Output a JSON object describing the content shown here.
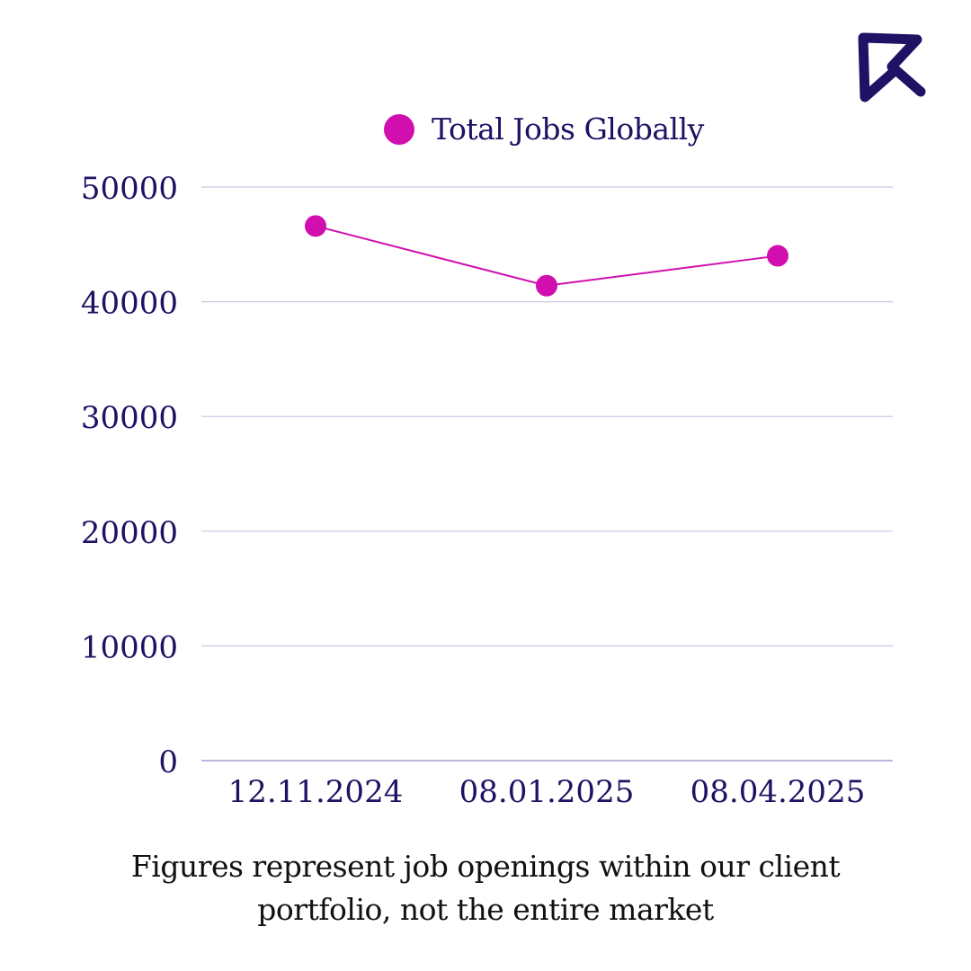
{
  "brand": {
    "logo_icon": "brand-logo-icon",
    "logo_color": "#1f1163"
  },
  "colors": {
    "series": "#d10faf",
    "text": "#1f1163",
    "grid": "#c9c6e6",
    "footnote": "#111111"
  },
  "chart_data": {
    "type": "line",
    "title": "",
    "xlabel": "",
    "ylabel": "",
    "categories": [
      "12.11.2024",
      "08.01.2025",
      "08.04.2025"
    ],
    "series": [
      {
        "name": "Total Jobs Globally",
        "values": [
          46600,
          41400,
          44000
        ]
      }
    ],
    "ylim": [
      0,
      50000
    ],
    "yticks": [
      "0",
      "10000",
      "20000",
      "30000",
      "40000",
      "50000"
    ],
    "grid": true,
    "legend_position": "top-center"
  },
  "footnote": {
    "text": "Figures represent job openings within our client portfolio, not the entire market"
  }
}
